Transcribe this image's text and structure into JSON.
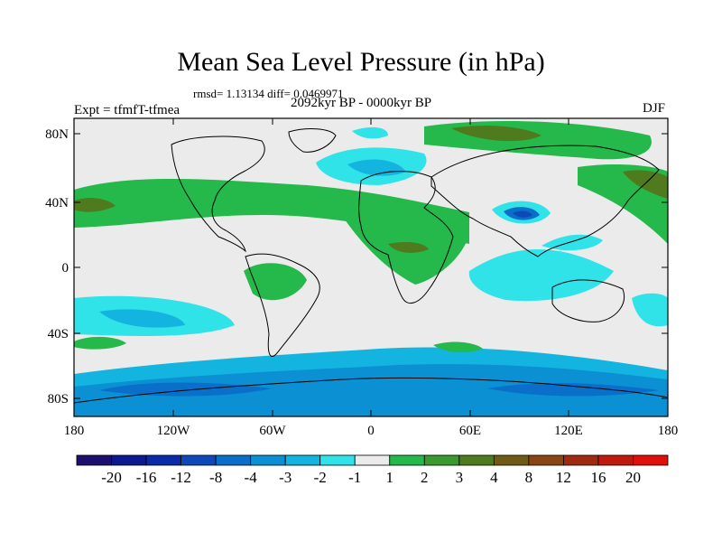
{
  "title": "Mean Sea Level Pressure (in hPa)",
  "stats": "rmsd= 1.13134 diff= 0.0469971",
  "experiment": "Expt = tfmfT-tfmea",
  "period": "2092kyr BP - 0000kyr BP",
  "season": "DJF",
  "lat_labels": [
    "80N",
    "40N",
    "0",
    "40S",
    "80S"
  ],
  "lon_labels": [
    "180",
    "120W",
    "60W",
    "0",
    "60E",
    "120E",
    "180"
  ],
  "colorbar": {
    "labels": [
      "-20",
      "-16",
      "-12",
      "-8",
      "-4",
      "-3",
      "-2",
      "-1",
      "1",
      "2",
      "3",
      "4",
      "8",
      "12",
      "16",
      "20"
    ],
    "colors": [
      "#1c0f6e",
      "#0b1b8f",
      "#0a2aa8",
      "#0d49b8",
      "#0a6fc9",
      "#0b90d4",
      "#14b4e0",
      "#30e3e8",
      "#ebebeb",
      "#25b84a",
      "#3a9a2f",
      "#4f7a1e",
      "#6f5a16",
      "#8a4514",
      "#a02a10",
      "#c0190d",
      "#e00f0a"
    ]
  },
  "map_colors": {
    "background": "#ebebeb",
    "cyan": "#30e3e8",
    "light_blue": "#14b4e0",
    "blue": "#0b90d4",
    "dark_blue": "#0a6fc9",
    "navy": "#0d49b8",
    "green": "#25b84a",
    "olive": "#4f7a1e",
    "brown": "#6f5a16",
    "coast": "#000000"
  }
}
